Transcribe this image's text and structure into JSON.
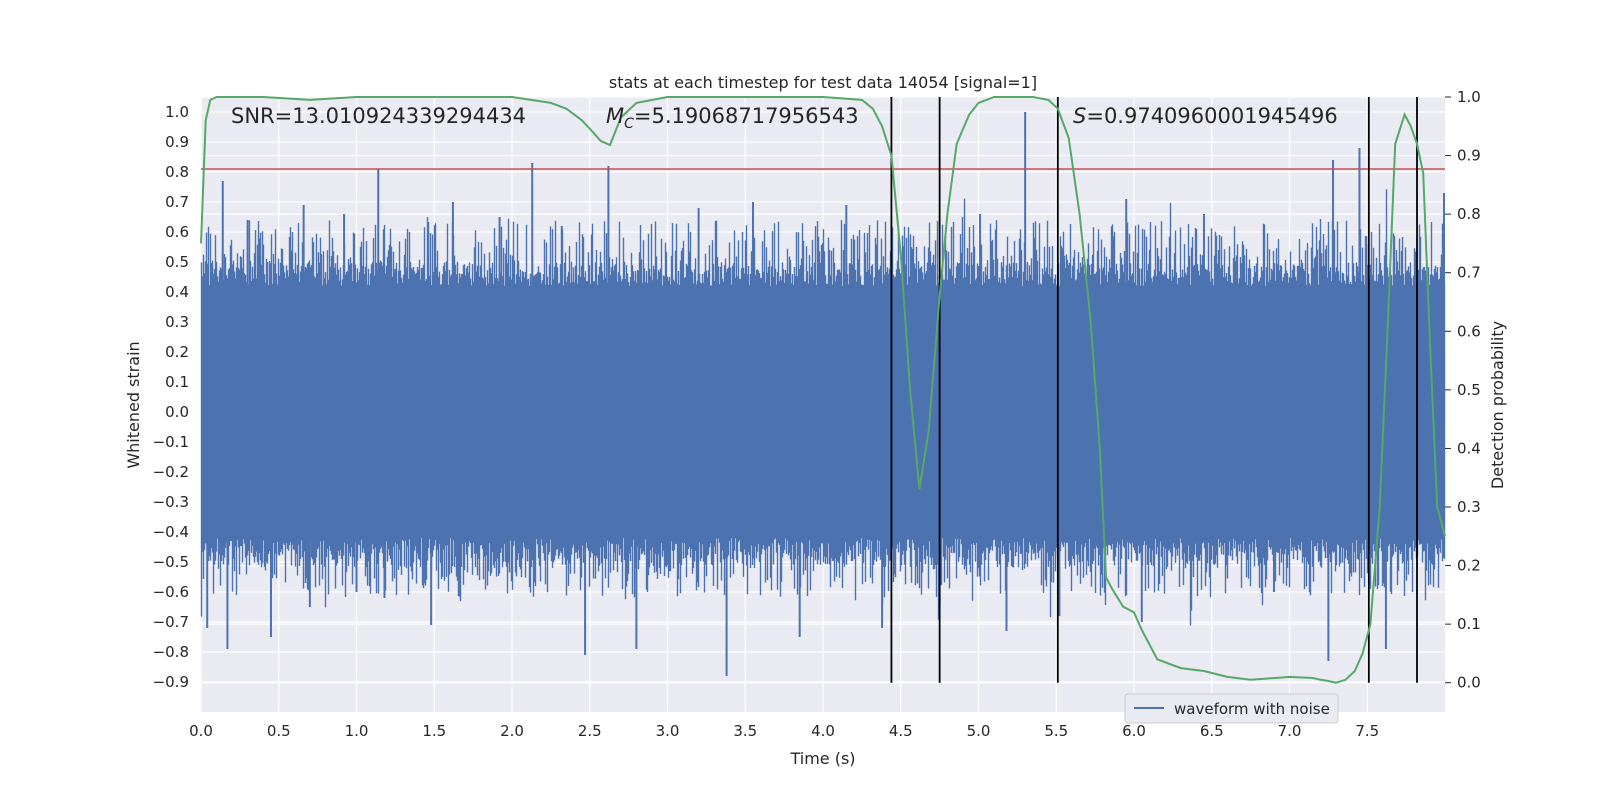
{
  "chart_data": {
    "type": "line",
    "title": "stats at each timestep for test data 14054 [signal=1]",
    "xlabel": "Time (s)",
    "ylabel": "Whitened strain",
    "y2label": "Detection probability",
    "xlim": [
      0.0,
      8.0
    ],
    "ylim": [
      -1.0,
      1.05
    ],
    "y2lim": [
      -0.05,
      1.0
    ],
    "xticks": [
      "0.0",
      "0.5",
      "1.0",
      "1.5",
      "2.0",
      "2.5",
      "3.0",
      "3.5",
      "4.0",
      "4.5",
      "5.0",
      "5.5",
      "6.0",
      "6.5",
      "7.0",
      "7.5"
    ],
    "yticks": [
      "1.0",
      "0.9",
      "0.8",
      "0.7",
      "0.6",
      "0.5",
      "0.4",
      "0.3",
      "0.2",
      "0.1",
      "0.0",
      "-0.1",
      "-0.2",
      "-0.3",
      "-0.4",
      "-0.5",
      "-0.6",
      "-0.7",
      "-0.8",
      "-0.9"
    ],
    "y2ticks": [
      "1.0",
      "0.9",
      "0.8",
      "0.7",
      "0.6",
      "0.5",
      "0.4",
      "0.3",
      "0.2",
      "0.1",
      "0.0"
    ],
    "grid": true,
    "annotations": {
      "snr": "SNR=13.010924339294434",
      "mc_symbol": "M",
      "mc_sub": "C",
      "mc_value": "=5.19068717956543",
      "s_symbol": "S",
      "s_value": "=0.9740960001945496"
    },
    "threshold": {
      "y": 0.81,
      "color": "#c44e52"
    },
    "vlines": [
      4.44,
      4.75,
      5.51,
      7.51,
      7.82
    ],
    "series": [
      {
        "name": "waveform with noise",
        "color": "#4c72b0",
        "core_envelope": 0.42,
        "peaks": [
          [
            0.04,
            -0.72
          ],
          [
            0.14,
            0.77
          ],
          [
            0.17,
            -0.79
          ],
          [
            0.3,
            0.64
          ],
          [
            0.45,
            -0.75
          ],
          [
            0.66,
            0.69
          ],
          [
            0.7,
            -0.65
          ],
          [
            0.92,
            0.66
          ],
          [
            1.0,
            -0.6
          ],
          [
            1.14,
            0.81
          ],
          [
            1.18,
            -0.62
          ],
          [
            1.48,
            -0.71
          ],
          [
            1.62,
            0.7
          ],
          [
            1.92,
            0.65
          ],
          [
            2.13,
            0.83
          ],
          [
            2.32,
            0.62
          ],
          [
            2.47,
            -0.81
          ],
          [
            2.62,
            0.82
          ],
          [
            2.8,
            -0.79
          ],
          [
            3.2,
            0.68
          ],
          [
            3.38,
            -0.88
          ],
          [
            3.55,
            0.7
          ],
          [
            3.85,
            -0.75
          ],
          [
            4.15,
            0.69
          ],
          [
            4.38,
            -0.72
          ],
          [
            4.75,
            -0.64
          ],
          [
            5.01,
            0.66
          ],
          [
            5.18,
            -0.73
          ],
          [
            5.3,
            1.0
          ],
          [
            5.52,
            -0.68
          ],
          [
            5.95,
            0.71
          ],
          [
            6.05,
            -0.7
          ],
          [
            6.45,
            0.66
          ],
          [
            6.9,
            -0.6
          ],
          [
            7.25,
            -0.83
          ],
          [
            7.28,
            0.84
          ],
          [
            7.45,
            0.88
          ],
          [
            7.62,
            -0.79
          ],
          [
            8.0,
            0.73
          ]
        ]
      },
      {
        "name": "",
        "color": "#55a868",
        "x": [
          0.0,
          0.03,
          0.06,
          0.1,
          0.2,
          0.4,
          0.7,
          1.0,
          1.5,
          2.0,
          2.25,
          2.35,
          2.45,
          2.52,
          2.57,
          2.63,
          2.7,
          2.8,
          3.0,
          3.5,
          4.0,
          4.25,
          4.32,
          4.38,
          4.44,
          4.5,
          4.56,
          4.62,
          4.68,
          4.75,
          4.8,
          4.86,
          4.94,
          5.0,
          5.1,
          5.2,
          5.35,
          5.45,
          5.51,
          5.58,
          5.65,
          5.72,
          5.78,
          5.82,
          5.86,
          5.93,
          6.0,
          6.05,
          6.15,
          6.3,
          6.45,
          6.6,
          6.75,
          6.85,
          7.0,
          7.15,
          7.2,
          7.25,
          7.3,
          7.36,
          7.42,
          7.47,
          7.52,
          7.58,
          7.63,
          7.68,
          7.74,
          7.78,
          7.82,
          7.86,
          7.9,
          7.95,
          8.0
        ],
        "y": [
          0.75,
          0.96,
          0.995,
          1.0,
          1.0,
          1.0,
          0.995,
          1.0,
          1.0,
          1.0,
          0.99,
          0.98,
          0.96,
          0.94,
          0.925,
          0.918,
          0.965,
          0.99,
          1.0,
          1.0,
          1.0,
          0.995,
          0.98,
          0.95,
          0.9,
          0.73,
          0.5,
          0.33,
          0.43,
          0.66,
          0.8,
          0.92,
          0.97,
          0.99,
          1.0,
          1.0,
          1.0,
          0.995,
          0.98,
          0.93,
          0.8,
          0.62,
          0.4,
          0.18,
          0.16,
          0.13,
          0.12,
          0.09,
          0.04,
          0.025,
          0.02,
          0.01,
          0.005,
          0.007,
          0.01,
          0.008,
          0.005,
          0.003,
          0.0,
          0.005,
          0.02,
          0.05,
          0.1,
          0.3,
          0.6,
          0.92,
          0.97,
          0.95,
          0.92,
          0.87,
          0.6,
          0.3,
          0.25
        ]
      }
    ],
    "legend": {
      "position": "bottom-right",
      "entries": [
        "waveform with noise"
      ]
    }
  }
}
